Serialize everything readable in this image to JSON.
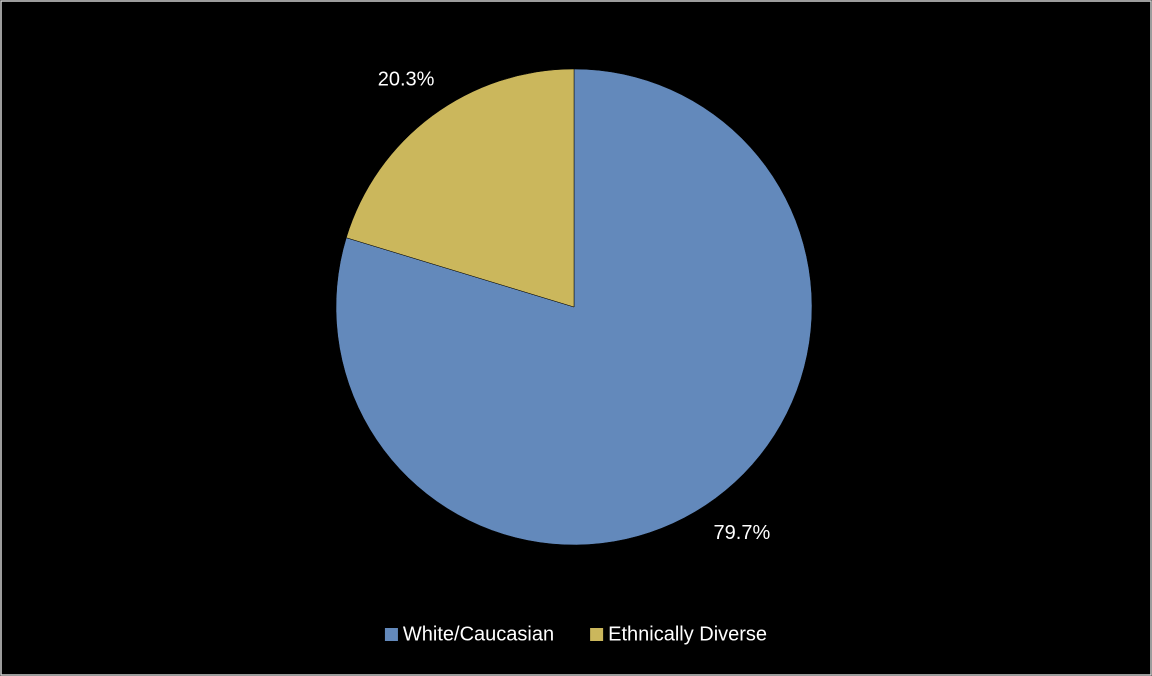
{
  "chart_data": {
    "type": "pie",
    "categories": [
      "White/Caucasian",
      "Ethnically Diverse"
    ],
    "values": [
      79.7,
      20.3
    ],
    "value_labels": [
      "79.7%",
      "20.3%"
    ],
    "colors": [
      "#6389bb",
      "#cbb75c"
    ],
    "legend": "bottom"
  }
}
